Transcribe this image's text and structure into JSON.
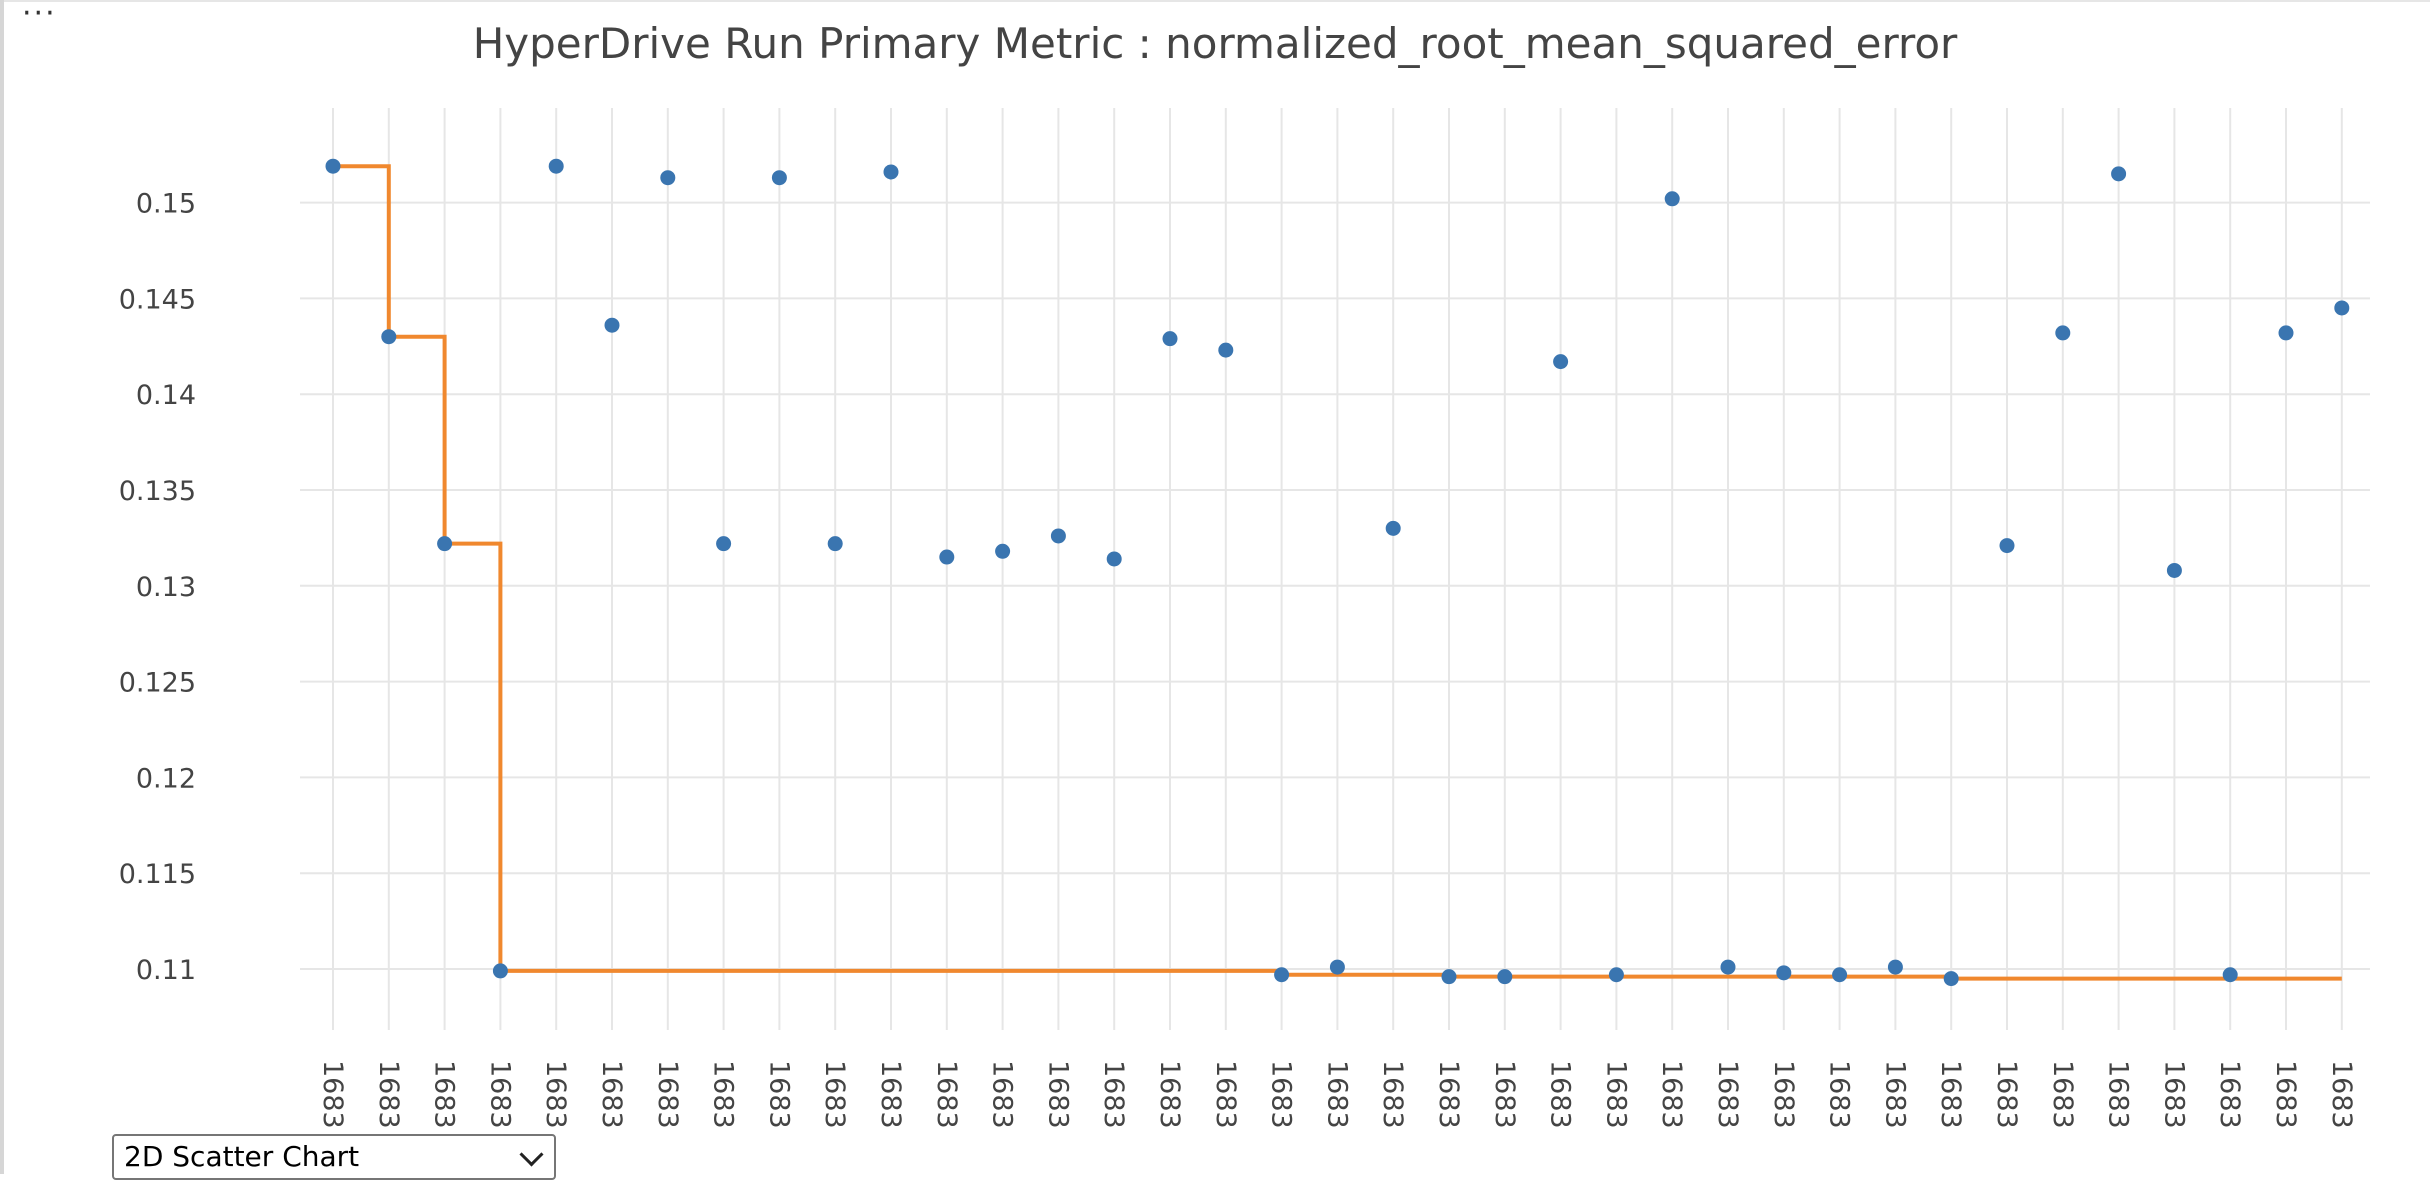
{
  "toolbar": {
    "more_label": "···"
  },
  "chart_type_select": {
    "selected": "2D Scatter Chart"
  },
  "colors": {
    "points": "#3a75b0",
    "best_line": "#f0882e",
    "grid": "#e6e6e6",
    "text": "#444444"
  },
  "chart_data": {
    "type": "scatter",
    "title": "HyperDrive Run Primary Metric : normalized_root_mean_squared_error",
    "xlabel": "",
    "ylabel": "",
    "ylim": [
      0.1055,
      0.1555
    ],
    "yticks": [
      0.11,
      0.115,
      0.12,
      0.125,
      0.13,
      0.135,
      0.14,
      0.145,
      0.15
    ],
    "yticklabels": [
      "0.11",
      "0.115",
      "0.12",
      "0.125",
      "0.13",
      "0.135",
      "0.14",
      "0.145",
      "0.15"
    ],
    "grid": true,
    "categories": [
      "1683",
      "1683",
      "1683",
      "1683",
      "1683",
      "1683",
      "1683",
      "1683",
      "1683",
      "1683",
      "1683",
      "1683",
      "1683",
      "1683",
      "1683",
      "1683",
      "1683",
      "1683",
      "1683",
      "1683",
      "1683",
      "1683",
      "1683",
      "1683",
      "1683",
      "1683",
      "1683",
      "1683",
      "1683",
      "1683",
      "1683",
      "1683",
      "1683",
      "1683",
      "1683",
      "1683",
      "1683"
    ],
    "series": [
      {
        "type": "scatter",
        "values": [
          0.1519,
          0.143,
          0.1322,
          0.1099,
          0.1519,
          0.1436,
          0.1513,
          0.1322,
          0.1513,
          0.1322,
          0.1516,
          0.1315,
          0.1318,
          0.1326,
          0.1314,
          0.1429,
          0.1423,
          0.1097,
          0.1101,
          0.133,
          0.1096,
          0.1096,
          0.1417,
          0.1097,
          0.1502,
          0.1101,
          0.1098,
          0.1097,
          0.1101,
          0.1095,
          0.1321,
          0.1432,
          0.1515,
          0.1308,
          0.1097,
          0.1432,
          0.1445
        ]
      },
      {
        "type": "step-line",
        "values": [
          0.1519,
          0.143,
          0.1322,
          0.1099,
          0.1099,
          0.1099,
          0.1099,
          0.1099,
          0.1099,
          0.1099,
          0.1099,
          0.1099,
          0.1099,
          0.1099,
          0.1099,
          0.1099,
          0.1099,
          0.1097,
          0.1097,
          0.1097,
          0.1096,
          0.1096,
          0.1096,
          0.1096,
          0.1096,
          0.1096,
          0.1096,
          0.1096,
          0.1096,
          0.1095,
          0.1095,
          0.1095,
          0.1095,
          0.1095,
          0.1095,
          0.1095,
          0.1095
        ]
      }
    ]
  }
}
